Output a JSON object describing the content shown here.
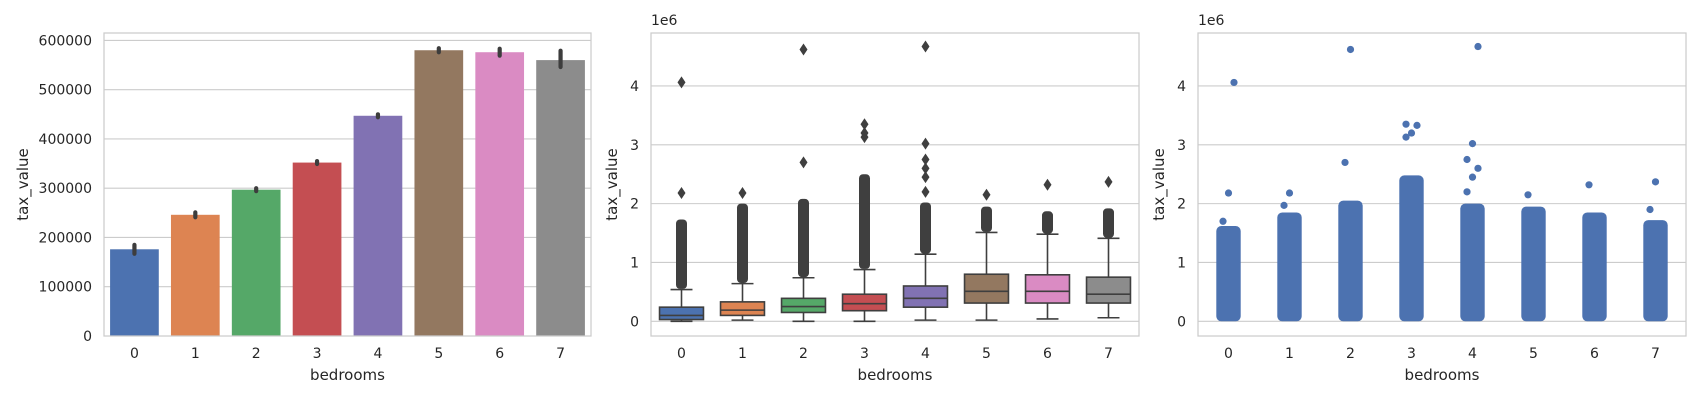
{
  "chart_data": [
    {
      "type": "bar",
      "xlabel": "bedrooms",
      "ylabel": "tax_value",
      "categories": [
        "0",
        "1",
        "2",
        "3",
        "4",
        "5",
        "6",
        "7"
      ],
      "values": [
        176000,
        246000,
        297000,
        352000,
        447000,
        580000,
        576000,
        560000
      ],
      "error_bars": [
        [
          167000,
          185000
        ],
        [
          241000,
          251000
        ],
        [
          294000,
          300000
        ],
        [
          349000,
          355000
        ],
        [
          444000,
          450000
        ],
        [
          576000,
          584000
        ],
        [
          569000,
          583000
        ],
        [
          546000,
          579000
        ]
      ],
      "ylim": [
        0,
        615000
      ],
      "yticks": [
        0,
        100000,
        200000,
        300000,
        400000,
        500000,
        600000
      ],
      "ytick_labels": [
        "0",
        "100000",
        "200000",
        "300000",
        "400000",
        "500000",
        "600000"
      ],
      "grid": true,
      "colors": [
        "#4c72b0",
        "#dd8452",
        "#55a868",
        "#c44e52",
        "#8172b3",
        "#937860",
        "#da8bc3",
        "#8c8c8c"
      ]
    },
    {
      "type": "box",
      "xlabel": "bedrooms",
      "ylabel": "tax_value",
      "y_offset_label": "1e6",
      "categories": [
        "0",
        "1",
        "2",
        "3",
        "4",
        "5",
        "6",
        "7"
      ],
      "boxes": [
        {
          "q1": 0.03,
          "median": 0.1,
          "q3": 0.24,
          "whisker_low": 0.0,
          "whisker_high": 0.54,
          "outliers_dense": [
            0.55,
            1.73
          ],
          "outliers": [
            2.18,
            4.06
          ]
        },
        {
          "q1": 0.1,
          "median": 0.19,
          "q3": 0.33,
          "whisker_low": 0.02,
          "whisker_high": 0.64,
          "outliers_dense": [
            0.65,
            2.0
          ],
          "outliers": [
            2.18
          ]
        },
        {
          "q1": 0.15,
          "median": 0.25,
          "q3": 0.39,
          "whisker_low": 0.0,
          "whisker_high": 0.74,
          "outliers_dense": [
            0.75,
            2.08
          ],
          "outliers": [
            2.7,
            4.62
          ]
        },
        {
          "q1": 0.18,
          "median": 0.3,
          "q3": 0.46,
          "whisker_low": 0.0,
          "whisker_high": 0.88,
          "outliers_dense": [
            0.89,
            2.5
          ],
          "outliers": [
            3.13,
            3.2,
            3.35
          ]
        },
        {
          "q1": 0.24,
          "median": 0.39,
          "q3": 0.6,
          "whisker_low": 0.02,
          "whisker_high": 1.14,
          "outliers_dense": [
            1.15,
            2.02
          ],
          "outliers": [
            2.2,
            2.45,
            2.6,
            2.75,
            3.02,
            4.67
          ]
        },
        {
          "q1": 0.31,
          "median": 0.51,
          "q3": 0.8,
          "whisker_low": 0.02,
          "whisker_high": 1.51,
          "outliers_dense": [
            1.52,
            1.95
          ],
          "outliers": [
            2.15
          ]
        },
        {
          "q1": 0.31,
          "median": 0.51,
          "q3": 0.79,
          "whisker_low": 0.04,
          "whisker_high": 1.48,
          "outliers_dense": [
            1.49,
            1.87
          ],
          "outliers": [
            2.32
          ]
        },
        {
          "q1": 0.31,
          "median": 0.46,
          "q3": 0.75,
          "whisker_low": 0.06,
          "whisker_high": 1.41,
          "outliers_dense": [
            1.42,
            1.92
          ],
          "outliers": [
            2.37
          ]
        }
      ],
      "ylim": [
        -0.25,
        4.9
      ],
      "yticks": [
        0,
        1,
        2,
        3,
        4
      ],
      "ytick_labels": [
        "0",
        "1",
        "2",
        "3",
        "4"
      ],
      "grid": true,
      "colors": [
        "#4c72b0",
        "#dd8452",
        "#55a868",
        "#c44e52",
        "#8172b3",
        "#937860",
        "#da8bc3",
        "#8c8c8c"
      ]
    },
    {
      "type": "scatter",
      "xlabel": "bedrooms",
      "ylabel": "tax_value",
      "y_offset_label": "1e6",
      "categories": [
        "0",
        "1",
        "2",
        "3",
        "4",
        "5",
        "6",
        "7"
      ],
      "strips": [
        {
          "dense": [
            0,
            1.62
          ],
          "points": [
            1.7,
            2.18,
            4.06
          ]
        },
        {
          "dense": [
            0,
            1.85
          ],
          "points": [
            1.97,
            2.18
          ]
        },
        {
          "dense": [
            0,
            2.05
          ],
          "points": [
            2.7,
            4.62
          ]
        },
        {
          "dense": [
            0,
            2.48
          ],
          "points": [
            3.13,
            3.2,
            3.33,
            3.35
          ]
        },
        {
          "dense": [
            0,
            2.0
          ],
          "points": [
            2.2,
            2.45,
            2.6,
            2.75,
            3.02,
            4.67
          ]
        },
        {
          "dense": [
            0,
            1.95
          ],
          "points": [
            2.15
          ]
        },
        {
          "dense": [
            0,
            1.85
          ],
          "points": [
            2.32
          ]
        },
        {
          "dense": [
            0,
            1.72
          ],
          "points": [
            1.9,
            2.37
          ]
        }
      ],
      "ylim": [
        -0.25,
        4.9
      ],
      "yticks": [
        0,
        1,
        2,
        3,
        4
      ],
      "ytick_labels": [
        "0",
        "1",
        "2",
        "3",
        "4"
      ],
      "grid": true,
      "color": "#4c72b0"
    }
  ]
}
